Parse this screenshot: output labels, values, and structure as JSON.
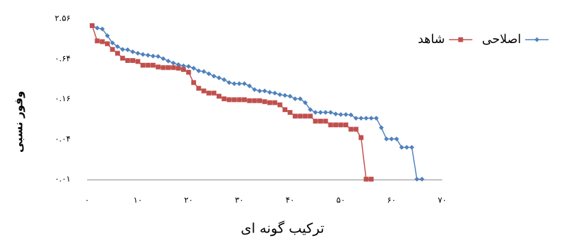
{
  "chart_data": {
    "type": "line",
    "xlabel": "ترکیب گونه ای",
    "ylabel": "وفور نسبی",
    "x": [
      1,
      2,
      3,
      4,
      5,
      6,
      7,
      8,
      9,
      10,
      11,
      12,
      13,
      14,
      15,
      16,
      17,
      18,
      19,
      20,
      21,
      22,
      23,
      24,
      25,
      26,
      27,
      28,
      29,
      30,
      31,
      32,
      33,
      34,
      35,
      36,
      37,
      38,
      39,
      40,
      41,
      42,
      43,
      44,
      45,
      46,
      47,
      48,
      49,
      50,
      51,
      52,
      53,
      54,
      55,
      56,
      57,
      58,
      59,
      60,
      61,
      62,
      63,
      64,
      65,
      66
    ],
    "series": [
      {
        "name": "اصلاحی",
        "color": "#4f81bd",
        "marker": "diamond",
        "values": [
          2.0,
          1.84,
          1.78,
          1.41,
          1.1,
          0.97,
          0.88,
          0.87,
          0.81,
          0.77,
          0.74,
          0.72,
          0.7,
          0.69,
          0.64,
          0.59,
          0.55,
          0.52,
          0.5,
          0.49,
          0.46,
          0.42,
          0.41,
          0.38,
          0.35,
          0.33,
          0.31,
          0.28,
          0.27,
          0.27,
          0.27,
          0.25,
          0.22,
          0.21,
          0.21,
          0.2,
          0.195,
          0.185,
          0.18,
          0.175,
          0.16,
          0.16,
          0.14,
          0.11,
          0.1,
          0.1,
          0.1,
          0.1,
          0.095,
          0.093,
          0.093,
          0.092,
          0.082,
          0.082,
          0.082,
          0.082,
          0.082,
          0.059,
          0.04,
          0.04,
          0.04,
          0.03,
          0.03,
          0.03,
          0.01,
          0.01
        ]
      },
      {
        "name": "شاهد",
        "color": "#c0504d",
        "marker": "square",
        "values": [
          2.0,
          1.18,
          1.15,
          1.07,
          0.88,
          0.77,
          0.65,
          0.6,
          0.6,
          0.58,
          0.51,
          0.51,
          0.51,
          0.48,
          0.47,
          0.47,
          0.47,
          0.46,
          0.44,
          0.4,
          0.28,
          0.23,
          0.21,
          0.195,
          0.195,
          0.175,
          0.16,
          0.155,
          0.155,
          0.155,
          0.155,
          0.15,
          0.15,
          0.15,
          0.145,
          0.14,
          0.14,
          0.13,
          0.11,
          0.1,
          0.088,
          0.088,
          0.088,
          0.088,
          0.074,
          0.074,
          0.074,
          0.065,
          0.065,
          0.065,
          0.065,
          0.056,
          0.056,
          0.042,
          0.01,
          0.01,
          null,
          null,
          null,
          null,
          null,
          null,
          null,
          null,
          null,
          null
        ]
      }
    ],
    "xlim": [
      0,
      70
    ],
    "xticks": [
      {
        "value": 0,
        "label": "۰"
      },
      {
        "value": 10,
        "label": "۱۰"
      },
      {
        "value": 20,
        "label": "۲۰"
      },
      {
        "value": 30,
        "label": "۳۰"
      },
      {
        "value": 40,
        "label": "۴۰"
      },
      {
        "value": 50,
        "label": "۵۰"
      },
      {
        "value": 60,
        "label": "۶۰"
      },
      {
        "value": 70,
        "label": "۷۰"
      }
    ],
    "ylim": [
      0.01,
      2.56
    ],
    "yticks": [
      {
        "value": 0.01,
        "label": "۰.۰۱"
      },
      {
        "value": 0.04,
        "label": "۰.۰۴"
      },
      {
        "value": 0.16,
        "label": "۰.۱۶"
      },
      {
        "value": 0.64,
        "label": "۰.۶۴"
      },
      {
        "value": 2.56,
        "label": "۲.۵۶"
      }
    ],
    "ylog": true,
    "grid": false,
    "legend": "top-right"
  }
}
